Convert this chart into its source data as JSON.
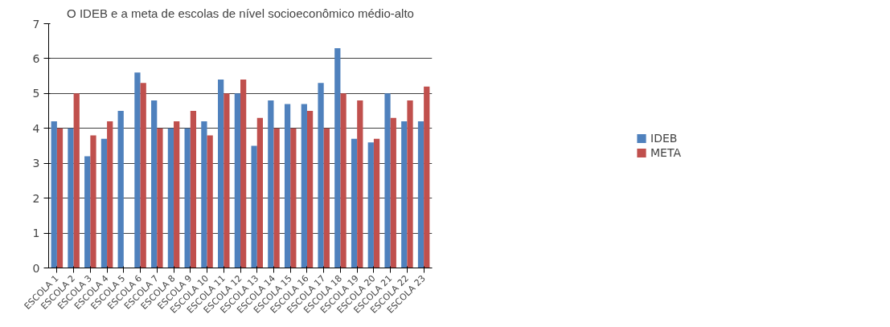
{
  "chart_data": {
    "type": "bar",
    "title": "O IDEB e a meta de escolas de nível socioeconômico médio-alto",
    "categories": [
      "ESCOLA 1",
      "ESCOLA 2",
      "ESCOLA 3",
      "ESCOLA 4",
      "ESCOLA 5",
      "ESCOLA 6",
      "ESCOLA 7",
      "ESCOLA 8",
      "ESCOLA 9",
      "ESCOLA 10",
      "ESCOLA 11",
      "ESCOLA 12",
      "ESCOLA 13",
      "ESCOLA 14",
      "ESCOLA 15",
      "ESCOLA 16",
      "ESCOLA 17",
      "ESCOLA 18",
      "ESCOLA 19",
      "ESCOLA 20",
      "ESCOLA 21",
      "ESCOLA 22",
      "ESCOLA 23"
    ],
    "series": [
      {
        "name": "IDEB",
        "color": "#4f81bd",
        "values": [
          4.2,
          4.0,
          3.2,
          3.7,
          4.5,
          5.6,
          4.8,
          4.0,
          4.0,
          4.2,
          5.4,
          5.0,
          3.5,
          4.8,
          4.7,
          4.7,
          5.3,
          6.3,
          3.7,
          3.6,
          5.0,
          4.2,
          4.2
        ]
      },
      {
        "name": "META",
        "color": "#c0504d",
        "values": [
          4.0,
          5.0,
          3.8,
          4.2,
          null,
          5.3,
          4.0,
          4.2,
          4.5,
          3.8,
          5.0,
          5.4,
          4.3,
          4.0,
          4.0,
          4.5,
          4.0,
          5.0,
          4.8,
          3.7,
          4.3,
          4.8,
          5.2
        ]
      }
    ],
    "ylim": [
      0,
      7
    ],
    "yticks": [
      0,
      1,
      2,
      3,
      4,
      5,
      6,
      7
    ],
    "grid": "y",
    "legend": "right"
  }
}
